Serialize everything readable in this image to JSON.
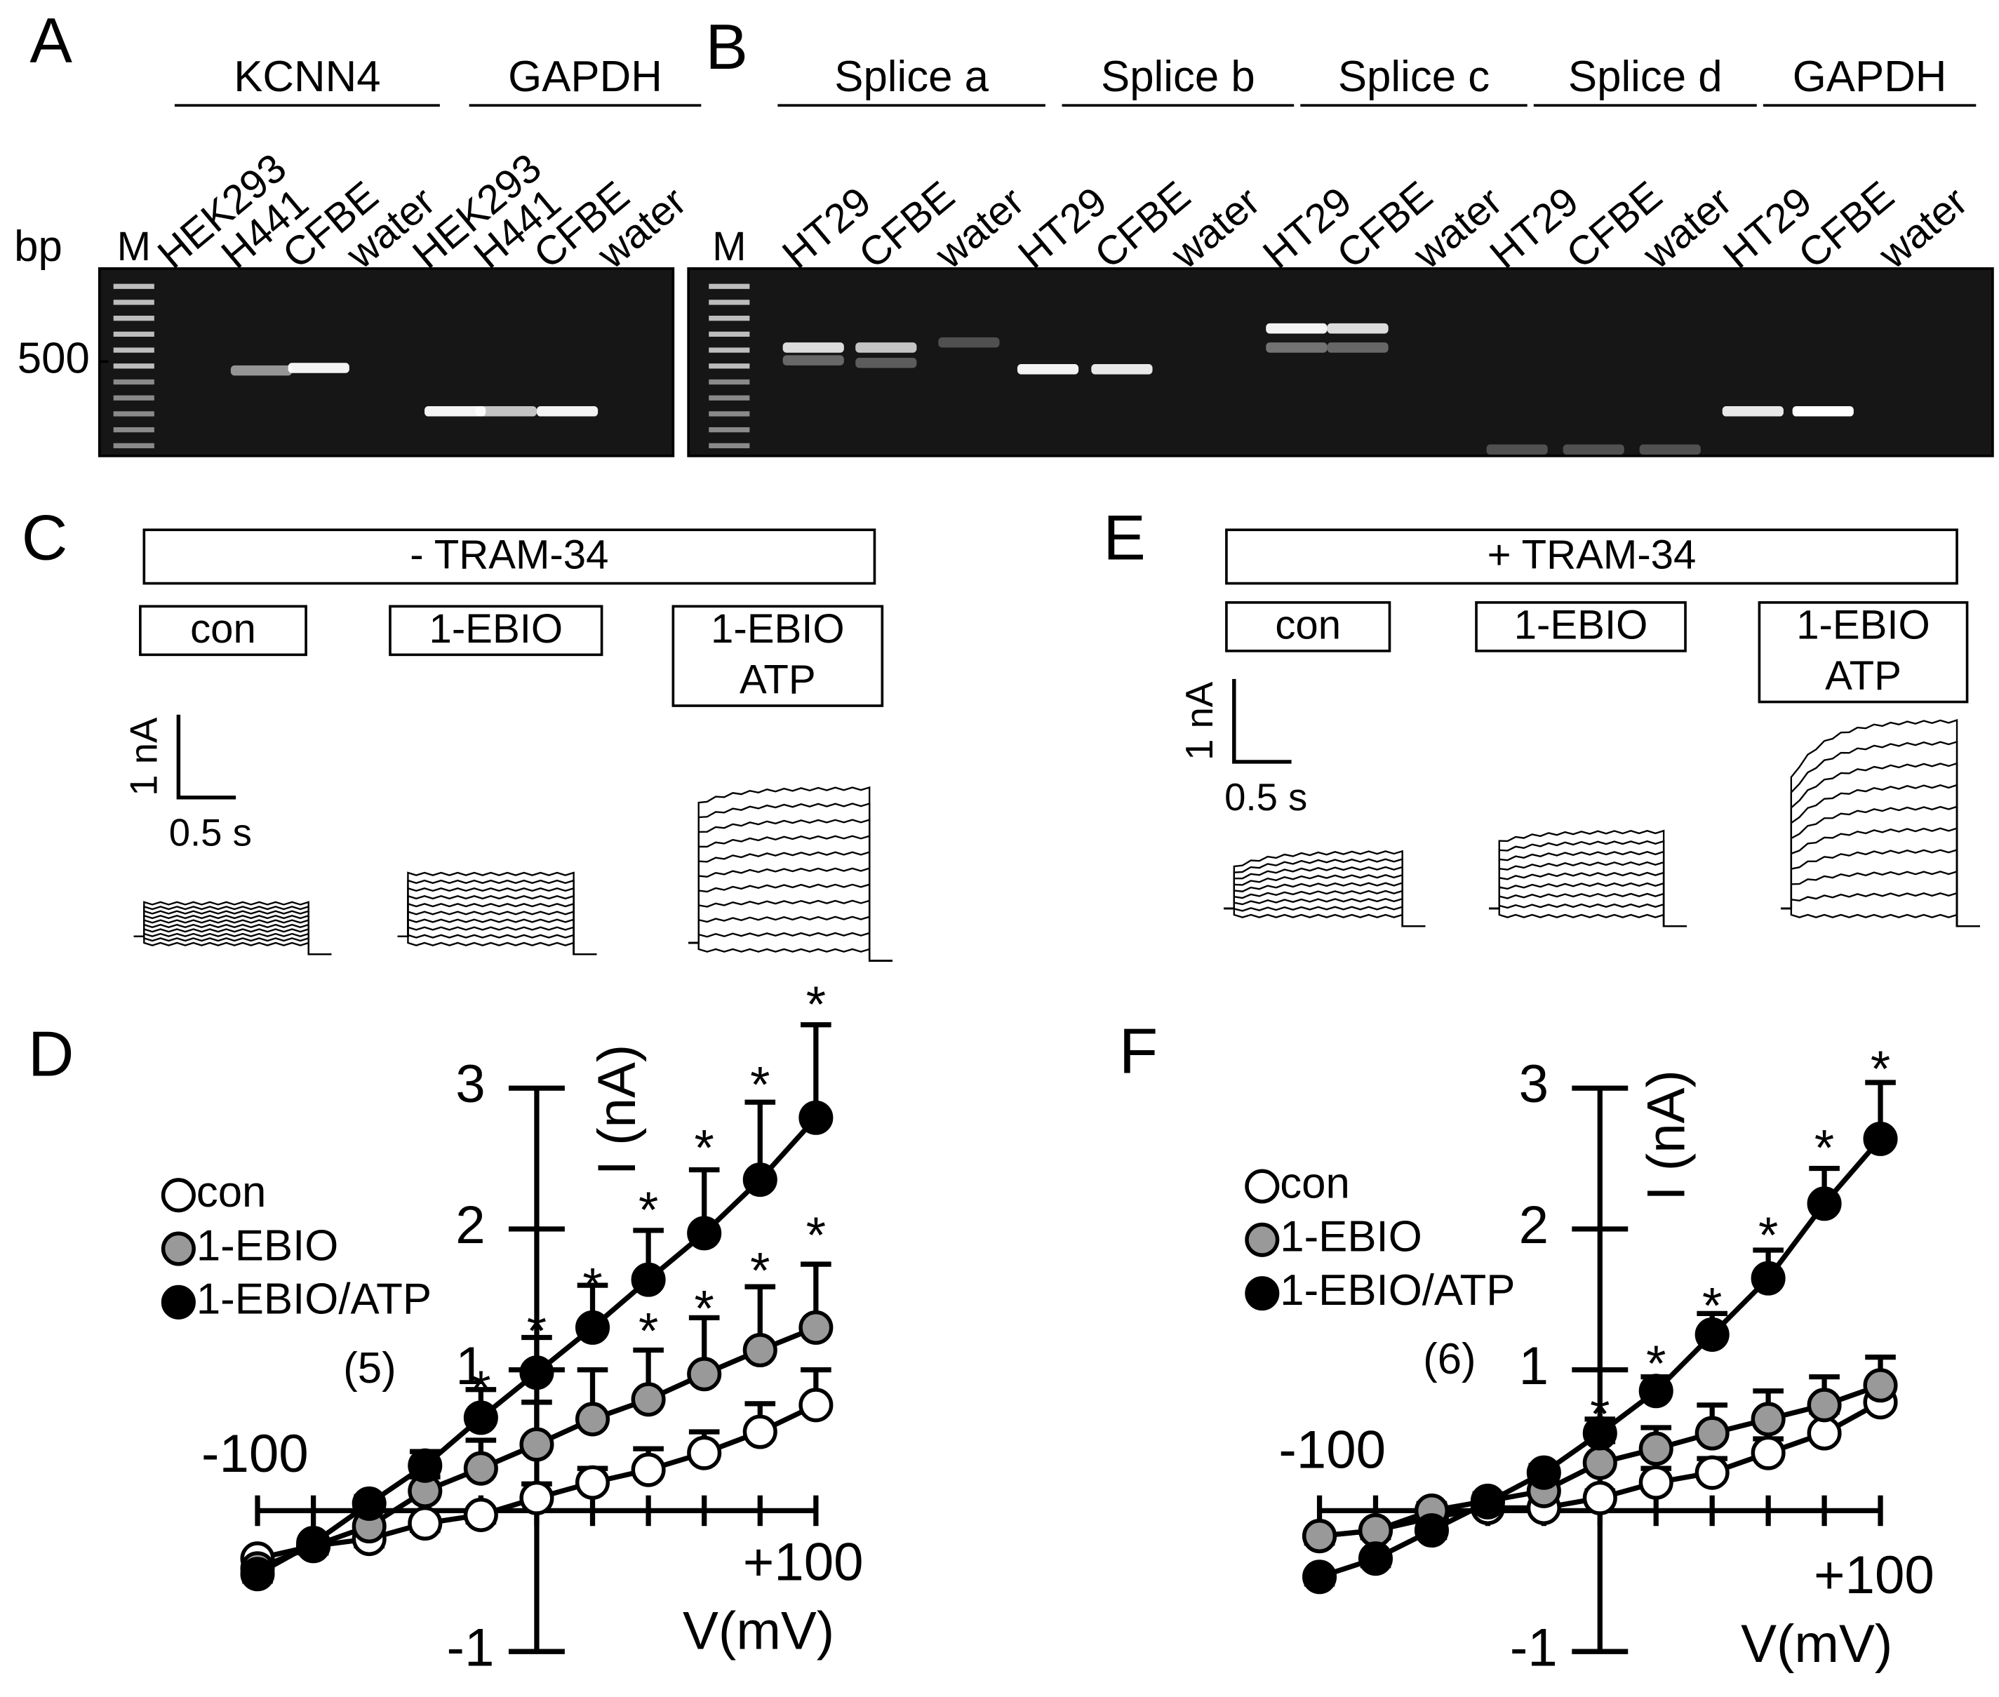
{
  "panel_labels": {
    "a": "A",
    "b": "B",
    "c": "C",
    "d": "D",
    "e": "E",
    "f": "F"
  },
  "gel_a": {
    "size_unit": "bp",
    "size_marker": "500",
    "marker": "M",
    "groups": [
      "KCNN4",
      "GAPDH"
    ],
    "lanes": [
      "HEK293",
      "H441",
      "CFBE",
      "water",
      "HEK293",
      "H441",
      "CFBE",
      "water"
    ]
  },
  "gel_b": {
    "marker": "M",
    "groups": [
      "Splice a",
      "Splice b",
      "Splice c",
      "Splice d",
      "GAPDH"
    ],
    "lanes": [
      "HT29",
      "CFBE",
      "water",
      "HT29",
      "CFBE",
      "water",
      "HT29",
      "CFBE",
      "water",
      "HT29",
      "CFBE",
      "water",
      "HT29",
      "CFBE",
      "water"
    ]
  },
  "panel_c": {
    "condition": "- TRAM-34",
    "treatments": [
      [
        "con"
      ],
      [
        "1-EBIO"
      ],
      [
        "1-EBIO",
        "ATP"
      ]
    ],
    "scale_current": "1 nA",
    "scale_time": "0.5 s"
  },
  "panel_e": {
    "condition": "+ TRAM-34",
    "treatments": [
      [
        "con"
      ],
      [
        "1-EBIO"
      ],
      [
        "1-EBIO",
        "ATP"
      ]
    ],
    "scale_current": "1 nA",
    "scale_time": "0.5 s"
  },
  "chart_data": [
    {
      "type": "line",
      "xlabel": "V(mV)",
      "ylabel": "I (nA)",
      "sample_size": "(5)",
      "x": [
        -100,
        -80,
        -60,
        -40,
        -20,
        0,
        20,
        40,
        60,
        80,
        100
      ],
      "xlim": [
        -100,
        100
      ],
      "ylim": [
        -1,
        3
      ],
      "xticks": [
        {
          "value": -100,
          "label": "-100"
        },
        {
          "value": 100,
          "label": "+100"
        }
      ],
      "yticks": [
        -1,
        1,
        2,
        3
      ],
      "series": [
        {
          "name": "con",
          "color": "#ffffff",
          "values": [
            -0.34,
            -0.25,
            -0.2,
            -0.09,
            -0.03,
            0.09,
            0.2,
            0.29,
            0.41,
            0.56,
            0.75
          ],
          "errors": [
            0.05,
            0.05,
            0.05,
            0.05,
            0.05,
            0.1,
            0.1,
            0.15,
            0.15,
            0.2,
            0.25
          ]
        },
        {
          "name": "1-EBIO",
          "color": "#999999",
          "values": [
            -0.41,
            -0.25,
            -0.11,
            0.14,
            0.3,
            0.47,
            0.65,
            0.79,
            0.97,
            1.14,
            1.3
          ],
          "errors": [
            0.05,
            0.05,
            0.05,
            0.1,
            0.2,
            0.3,
            0.35,
            0.35,
            0.4,
            0.45,
            0.45
          ]
        },
        {
          "name": "1-EBIO/ATP",
          "color": "#000000",
          "values": [
            -0.45,
            -0.23,
            0.05,
            0.32,
            0.66,
            0.98,
            1.3,
            1.64,
            1.97,
            2.35,
            2.79
          ],
          "errors": [
            0.05,
            0.05,
            0.05,
            0.1,
            0.2,
            0.25,
            0.3,
            0.35,
            0.45,
            0.55,
            0.66
          ]
        }
      ],
      "annotations": [
        {
          "text": "*",
          "x": -20,
          "y": 0.91
        },
        {
          "text": "*",
          "x": 0,
          "y": 1.32
        },
        {
          "text": "*",
          "x": 20,
          "y": 1.64
        },
        {
          "text": "*",
          "x": 40,
          "y": 2.18
        },
        {
          "text": "*",
          "x": 60,
          "y": 2.62
        },
        {
          "text": "*",
          "x": 80,
          "y": 3.07
        },
        {
          "text": "*",
          "x": 100,
          "y": 3.64
        },
        {
          "text": "*",
          "x": 40,
          "y": 1.32
        },
        {
          "text": "*",
          "x": 60,
          "y": 1.48
        },
        {
          "text": "*",
          "x": 80,
          "y": 1.75
        },
        {
          "text": "*",
          "x": 100,
          "y": 2.0
        }
      ]
    },
    {
      "type": "line",
      "xlabel": "V(mV)",
      "ylabel": "I (nA)",
      "sample_size": "(6)",
      "x": [
        -100,
        -80,
        -60,
        -40,
        -20,
        0,
        20,
        40,
        60,
        80,
        100
      ],
      "xlim": [
        -100,
        100
      ],
      "ylim": [
        -1,
        3
      ],
      "xticks": [
        {
          "value": -100,
          "label": "-100"
        },
        {
          "value": 100,
          "label": "+100"
        }
      ],
      "yticks": [
        -1,
        1,
        2,
        3
      ],
      "series": [
        {
          "name": "con",
          "color": "#ffffff",
          "values": [
            -0.18,
            -0.14,
            -0.05,
            0.02,
            0.02,
            0.09,
            0.2,
            0.27,
            0.41,
            0.55,
            0.77
          ],
          "errors": [
            0.05,
            0.05,
            0.05,
            0.05,
            0.05,
            0.05,
            0.1,
            0.1,
            0.1,
            0.15,
            0.15
          ]
        },
        {
          "name": "1-EBIO",
          "color": "#999999",
          "values": [
            -0.18,
            -0.14,
            0,
            0.07,
            0.14,
            0.34,
            0.44,
            0.55,
            0.65,
            0.75,
            0.89
          ],
          "errors": [
            0.05,
            0.05,
            0.05,
            0.05,
            0.1,
            0.15,
            0.15,
            0.2,
            0.2,
            0.2,
            0.2
          ]
        },
        {
          "name": "1-EBIO/ATP",
          "color": "#000000",
          "values": [
            -0.47,
            -0.34,
            -0.14,
            0.06,
            0.27,
            0.55,
            0.85,
            1.25,
            1.65,
            2.18,
            2.64
          ],
          "errors": [
            0.05,
            0.05,
            0.05,
            0.05,
            0.05,
            0.1,
            0.1,
            0.15,
            0.2,
            0.25,
            0.4
          ]
        }
      ],
      "annotations": [
        {
          "text": "*",
          "x": 0,
          "y": 0.73
        },
        {
          "text": "*",
          "x": 20,
          "y": 1.09
        },
        {
          "text": "*",
          "x": 40,
          "y": 1.5
        },
        {
          "text": "*",
          "x": 60,
          "y": 2.0
        },
        {
          "text": "*",
          "x": 80,
          "y": 2.62
        },
        {
          "text": "*",
          "x": 100,
          "y": 3.18
        }
      ]
    }
  ]
}
